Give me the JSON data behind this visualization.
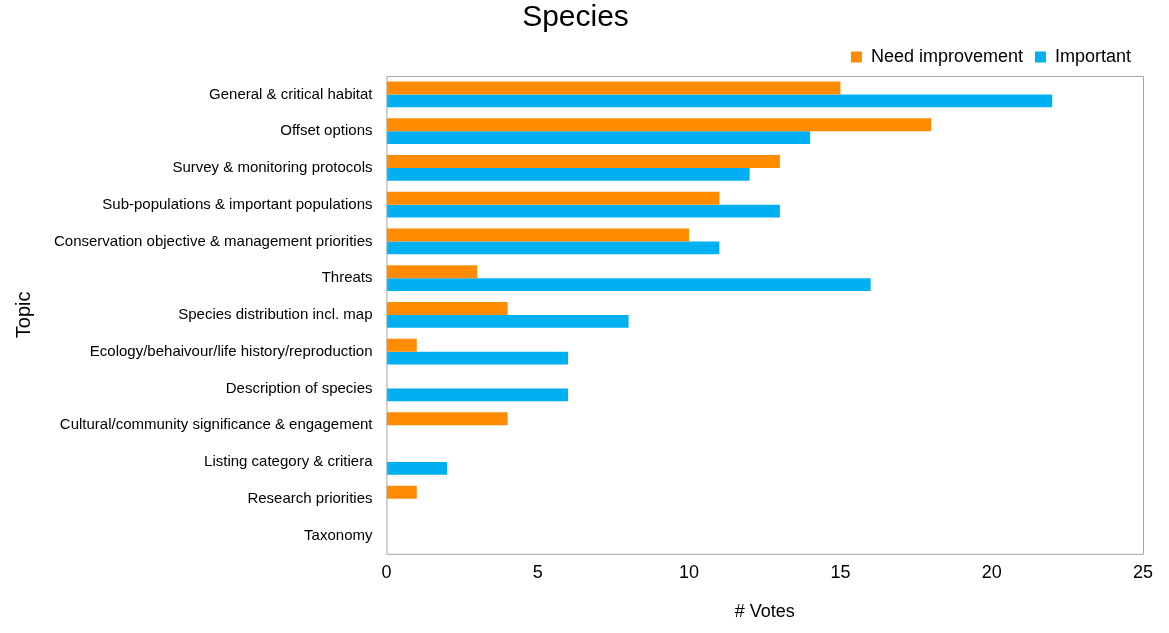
{
  "chart_data": {
    "type": "bar",
    "orientation": "horizontal",
    "title": "Species",
    "xlabel": "# Votes",
    "ylabel": "Topic",
    "categories": [
      "General & critical habitat",
      "Offset options",
      "Survey & monitoring protocols",
      "Sub-populations & important populations",
      "Conservation objective & management priorities",
      "Threats",
      "Species distribution incl. map",
      "Ecology/behaivour/life history/reproduction",
      "Description of species",
      "Cultural/community significance & engagement",
      "Listing category & critiera",
      "Research priorities",
      "Taxonomy"
    ],
    "series": [
      {
        "name": "Need improvement",
        "color": "#ff8c00",
        "values": [
          15,
          18,
          13,
          11,
          10,
          3,
          4,
          1,
          0,
          4,
          0,
          1,
          0
        ]
      },
      {
        "name": "Important",
        "color": "#00b0f0",
        "values": [
          22,
          14,
          12,
          13,
          11,
          16,
          8,
          6,
          6,
          0,
          2,
          0,
          0
        ]
      }
    ],
    "xlim": [
      0,
      25
    ],
    "xticks": [
      0,
      5,
      10,
      15,
      20,
      25
    ],
    "grid": false,
    "legend": "top right"
  }
}
